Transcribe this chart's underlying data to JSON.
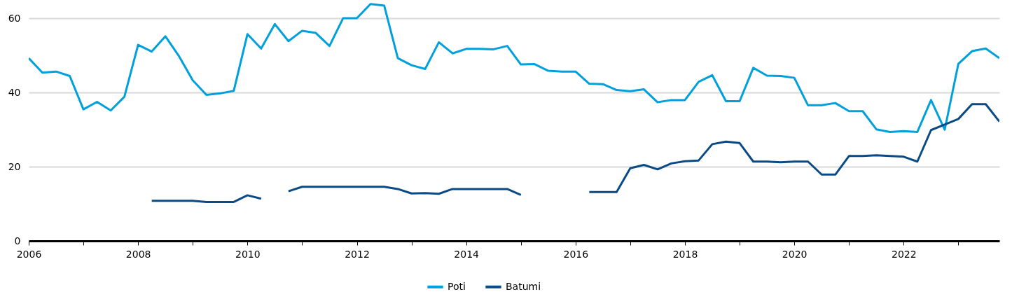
{
  "chart_data": {
    "type": "line",
    "x": [
      2006,
      2006.25,
      2006.5,
      2006.75,
      2007,
      2007.25,
      2007.5,
      2007.75,
      2008,
      2008.25,
      2008.5,
      2008.75,
      2009,
      2009.25,
      2009.5,
      2009.75,
      2010,
      2010.25,
      2010.5,
      2010.75,
      2011,
      2011.25,
      2011.5,
      2011.75,
      2012,
      2012.25,
      2012.5,
      2012.75,
      2013,
      2013.25,
      2013.5,
      2013.75,
      2014,
      2014.25,
      2014.5,
      2014.75,
      2015,
      2015.25,
      2015.5,
      2015.75,
      2016,
      2016.25,
      2016.5,
      2016.75,
      2017,
      2017.25,
      2017.5,
      2017.75,
      2018,
      2018.25,
      2018.5,
      2018.75,
      2019,
      2019.25,
      2019.5,
      2019.75,
      2020,
      2020.25,
      2020.5,
      2020.75,
      2021,
      2021.25,
      2021.5,
      2021.75,
      2022,
      2022.25,
      2022.5,
      2022.75,
      2023,
      2023.25,
      2023.5,
      2023.75
    ],
    "series": [
      {
        "name": "Poti",
        "color": "#00a0dc",
        "values": [
          49.3,
          45.4,
          45.7,
          44.5,
          35.5,
          37.5,
          35.2,
          38.9,
          52.9,
          51.1,
          55.2,
          49.8,
          43.3,
          39.4,
          39.8,
          40.5,
          55.8,
          51.9,
          58.5,
          53.9,
          56.7,
          56.1,
          52.6,
          60.1,
          60.1,
          63.9,
          63.5,
          49.3,
          47.4,
          46.4,
          53.6,
          50.6,
          51.8,
          51.8,
          51.7,
          52.6,
          47.6,
          47.7,
          45.9,
          45.7,
          45.7,
          42.4,
          42.3,
          40.7,
          40.4,
          40.9,
          37.4,
          38.0,
          38.0,
          42.9,
          44.7,
          37.7,
          37.7,
          46.7,
          44.6,
          44.5,
          44.0,
          36.6,
          36.6,
          37.2,
          35.0,
          35.0,
          30.1,
          29.4,
          29.6,
          29.4,
          38.0,
          30.0,
          47.8,
          51.2,
          51.9,
          49.3
        ]
      },
      {
        "name": "Batumi",
        "color": "#0a4a85",
        "values": [
          null,
          null,
          null,
          null,
          null,
          null,
          null,
          null,
          null,
          10.8,
          10.8,
          10.8,
          10.8,
          10.5,
          10.5,
          10.5,
          12.3,
          11.4,
          null,
          13.4,
          14.6,
          14.6,
          14.6,
          14.6,
          14.6,
          14.6,
          14.6,
          14.0,
          12.8,
          12.9,
          12.7,
          14.0,
          14.0,
          14.0,
          14.0,
          14.0,
          12.4,
          null,
          null,
          null,
          null,
          13.2,
          13.2,
          13.2,
          19.6,
          20.5,
          19.3,
          20.9,
          21.5,
          21.7,
          26.1,
          26.8,
          26.4,
          21.4,
          21.4,
          21.2,
          21.4,
          21.4,
          17.9,
          17.9,
          22.9,
          22.9,
          23.1,
          22.9,
          22.7,
          21.4,
          29.9,
          31.4,
          32.9,
          36.9,
          36.9,
          32.2
        ]
      }
    ],
    "xlim": [
      2006,
      2023.75
    ],
    "xticks": [
      2006,
      {
        "value": 2007,
        "label": null
      },
      2008,
      {
        "value": 2009,
        "label": null
      },
      2010,
      {
        "value": 2011,
        "label": null
      },
      2012,
      {
        "value": 2013,
        "label": null
      },
      2014,
      {
        "value": 2015,
        "label": null
      },
      2016,
      {
        "value": 2017,
        "label": null
      },
      2018,
      {
        "value": 2019,
        "label": null
      },
      2020,
      {
        "value": 2021,
        "label": null
      },
      2022,
      {
        "value": 2023,
        "label": null
      }
    ],
    "ylim": [
      0,
      65
    ],
    "yticks": [
      0,
      20,
      40,
      60
    ],
    "grid": "y",
    "legend": "bottom"
  }
}
